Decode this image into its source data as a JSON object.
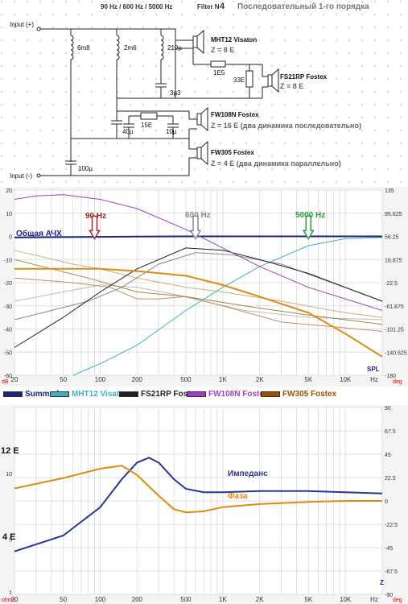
{
  "schematic": {
    "header_freqs": "90 Hz / 600 Hz / 5000 Hz",
    "header_filter": "Filter N",
    "header_filter_num": "4",
    "header_type": "Последовательный  1-го порядка",
    "input_plus": "Input (+)",
    "input_minus": "Input (-)",
    "components": {
      "L1": "6m8",
      "L2": "2m6",
      "L3": "210µ",
      "C1": "3µ3",
      "R1": "1E5",
      "R2": "33E",
      "R3": "15E",
      "C2": "40µ",
      "C3": "10µ",
      "C4": "100µ"
    },
    "speakers": [
      {
        "name": "MHT12 Visaton",
        "imp": "Z = 8 E"
      },
      {
        "name": "FS21RP Fostex",
        "imp": "Z = 8 E"
      },
      {
        "name": "FW108N Fostex",
        "imp": "Z = 16 E (два динамика последовательно)"
      },
      {
        "name": "FW305 Fostex",
        "imp": "Z = 4 E (два динамика параллельно)"
      }
    ]
  },
  "freq_chart": {
    "y_left_ticks": [
      "20",
      "10",
      "0",
      "-10",
      "-20",
      "-30",
      "-40",
      "-50",
      "-60"
    ],
    "y_right_ticks": [
      "135",
      "95.625",
      "56.25",
      "16.875",
      "-22.5",
      "-61.875",
      "-101.25",
      "-140.625",
      "-180"
    ],
    "x_ticks": [
      "20",
      "50",
      "100",
      "200",
      "500",
      "1K",
      "2K",
      "5K",
      "10K",
      "Hz"
    ],
    "unit_left": "dB",
    "unit_right": "deg",
    "spl_label": "SPL",
    "sum_label": "Общая АЧХ",
    "markers": [
      {
        "label": "90 Hz",
        "color": "#a0282c"
      },
      {
        "label": "600 Hz",
        "color": "#8a8a8a"
      },
      {
        "label": "5000 Hz",
        "color": "#2a9a3c"
      }
    ]
  },
  "chart_data": [
    {
      "type": "line",
      "xscale": "log",
      "xlim": [
        20,
        20000
      ],
      "ylim": [
        -60,
        20
      ],
      "y2lim": [
        -180,
        135
      ],
      "series": [
        {
          "name": "Summed",
          "color": "#1a237e",
          "x": [
            20,
            50,
            100,
            200,
            500,
            1000,
            2000,
            5000,
            10000,
            20000
          ],
          "y": [
            -0.5,
            -0.3,
            -0.2,
            -0.1,
            0,
            0,
            0,
            0,
            0,
            0
          ]
        },
        {
          "name": "MHT12 Visaton",
          "color": "#3fb0c0",
          "x": [
            60,
            100,
            200,
            500,
            1000,
            2000,
            5000,
            10000,
            20000
          ],
          "y": [
            -60,
            -55,
            -47,
            -32,
            -22,
            -13,
            -4,
            -1,
            -0.5
          ]
        },
        {
          "name": "FS21RP Fostex",
          "color": "#202020",
          "x": [
            20,
            50,
            100,
            200,
            500,
            1000,
            2000,
            5000,
            10000,
            20000
          ],
          "y": [
            -48,
            -35,
            -24,
            -14,
            -5,
            -6,
            -10,
            -16,
            -22,
            -28
          ]
        },
        {
          "name": "FW108N Fostex",
          "color": "#a040c0",
          "x": [
            20,
            30,
            50,
            100,
            200,
            500,
            1000,
            2000,
            5000,
            10000,
            20000
          ],
          "y": [
            16,
            17.5,
            18,
            16,
            12,
            3,
            -5,
            -13,
            -22,
            -27,
            -32
          ]
        },
        {
          "name": "FW305 Fostex",
          "color": "#e08a10",
          "x": [
            20,
            50,
            100,
            200,
            500,
            1000,
            2000,
            5000,
            10000,
            20000
          ],
          "y": [
            -14,
            -14,
            -14,
            -15,
            -17,
            -21,
            -26,
            -33,
            -42,
            -52
          ]
        }
      ]
    },
    {
      "type": "line",
      "xscale": "log",
      "xlim": [
        20,
        20000
      ],
      "ylim": [
        3,
        18
      ],
      "y2lim": [
        -90,
        90
      ],
      "series": [
        {
          "name": "Импеданс",
          "color": "#283593",
          "axis": "ohms",
          "x": [
            20,
            50,
            100,
            150,
            200,
            250,
            300,
            400,
            500,
            700,
            1000,
            2000,
            5000,
            10000,
            20000
          ],
          "y": [
            4.4,
            5.2,
            7.0,
            9.4,
            11.2,
            11.8,
            11.2,
            9.4,
            8.5,
            8.2,
            8.2,
            8.3,
            8.3,
            8.2,
            8.1
          ]
        },
        {
          "name": "Фаза",
          "color": "#e08a10",
          "axis": "deg",
          "x": [
            20,
            50,
            100,
            150,
            200,
            300,
            400,
            500,
            700,
            1000,
            2000,
            5000,
            10000,
            20000
          ],
          "y": [
            12,
            22,
            31,
            34,
            25,
            5,
            -8,
            -11,
            -10,
            -6,
            -3,
            -1,
            0,
            0
          ]
        }
      ]
    }
  ],
  "legend": [
    {
      "label": "Summed",
      "color": "#1a237e"
    },
    {
      "label": "MHT12 Visaton",
      "color": "#3fb0c0"
    },
    {
      "label": "FS21RP Fostex",
      "color": "#202020"
    },
    {
      "label": "FW108N Fostex",
      "color": "#a040c0"
    },
    {
      "label": "FW305 Fostex",
      "color": "#a05000"
    }
  ],
  "imp_chart": {
    "y_left_ticks": [
      "10",
      "5",
      "1"
    ],
    "y_left_big": [
      "12 E",
      "4 E"
    ],
    "y_right_ticks": [
      "90",
      "67.5",
      "45",
      "22.5",
      "0",
      "-22.5",
      "-45",
      "-67.5",
      "-90"
    ],
    "x_ticks": [
      "20",
      "50",
      "100",
      "200",
      "500",
      "1K",
      "2K",
      "5K",
      "10K",
      "Hz"
    ],
    "unit_left": "ohms",
    "unit_right": "deg",
    "z_label": "Z",
    "imp_label": "Импеданс",
    "phase_label": "Фаза"
  }
}
